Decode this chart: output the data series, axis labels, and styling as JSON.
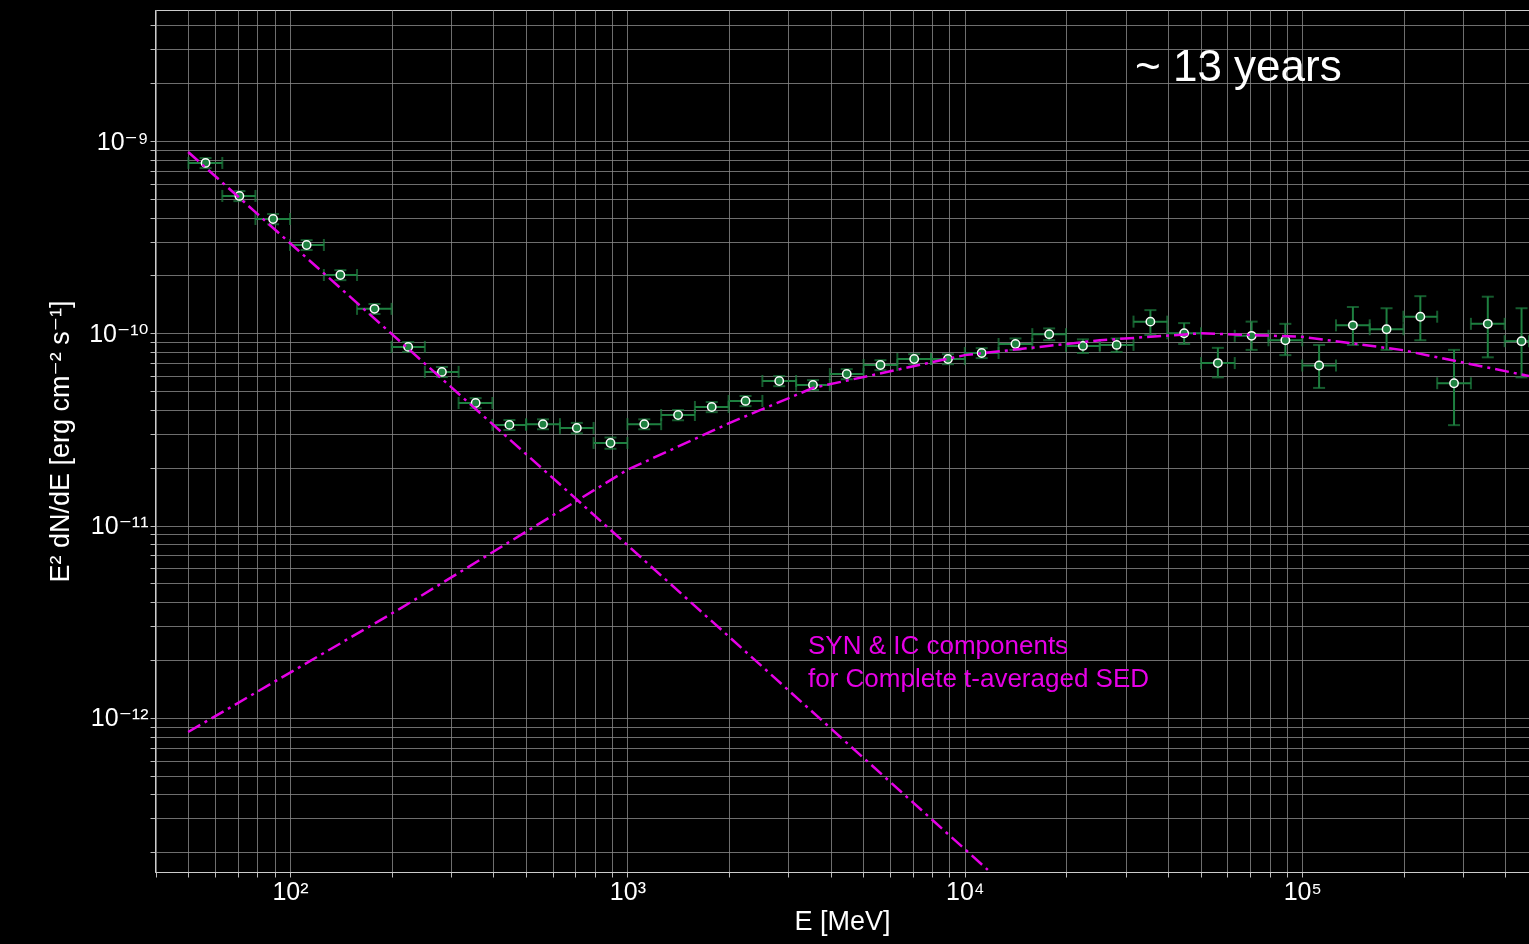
{
  "chart_data": {
    "type": "scatter",
    "xlabel": "E [MeV]",
    "ylabel": "E² dN/dE [erg cm⁻² s⁻¹]",
    "annotations": [
      "~ 13 years",
      "SYN & IC components",
      "for Complete t-averaged SED"
    ],
    "log": "xy",
    "grid": true,
    "xlim": [
      39.8,
      470000
    ],
    "ylim": [
      1.58e-13,
      4.8e-09
    ],
    "xticks": [
      {
        "value": 40,
        "label": null
      },
      {
        "value": 50,
        "label": null
      },
      {
        "value": 60,
        "label": null
      },
      {
        "value": 70,
        "label": null
      },
      {
        "value": 80,
        "label": null
      },
      {
        "value": 90,
        "label": null
      },
      {
        "value": 100,
        "label": "10²"
      },
      {
        "value": 200,
        "label": null
      },
      {
        "value": 300,
        "label": null
      },
      {
        "value": 400,
        "label": null
      },
      {
        "value": 500,
        "label": null
      },
      {
        "value": 600,
        "label": null
      },
      {
        "value": 700,
        "label": null
      },
      {
        "value": 800,
        "label": null
      },
      {
        "value": 900,
        "label": null
      },
      {
        "value": 1000,
        "label": "10³"
      },
      {
        "value": 2000,
        "label": null
      },
      {
        "value": 3000,
        "label": null
      },
      {
        "value": 4000,
        "label": null
      },
      {
        "value": 5000,
        "label": null
      },
      {
        "value": 6000,
        "label": null
      },
      {
        "value": 7000,
        "label": null
      },
      {
        "value": 8000,
        "label": null
      },
      {
        "value": 9000,
        "label": null
      },
      {
        "value": 10000,
        "label": "10⁴"
      },
      {
        "value": 20000,
        "label": null
      },
      {
        "value": 30000,
        "label": null
      },
      {
        "value": 40000,
        "label": null
      },
      {
        "value": 50000,
        "label": null
      },
      {
        "value": 60000,
        "label": null
      },
      {
        "value": 70000,
        "label": null
      },
      {
        "value": 80000,
        "label": null
      },
      {
        "value": 90000,
        "label": null
      },
      {
        "value": 100000,
        "label": "10⁵"
      },
      {
        "value": 200000,
        "label": null
      },
      {
        "value": 300000,
        "label": null
      },
      {
        "value": 400000,
        "label": null
      }
    ],
    "yticks": [
      {
        "value": 2e-13,
        "label": null
      },
      {
        "value": 3e-13,
        "label": null
      },
      {
        "value": 4e-13,
        "label": null
      },
      {
        "value": 5e-13,
        "label": null
      },
      {
        "value": 6e-13,
        "label": null
      },
      {
        "value": 7e-13,
        "label": null
      },
      {
        "value": 8e-13,
        "label": null
      },
      {
        "value": 9e-13,
        "label": null
      },
      {
        "value": 1e-12,
        "label": "10⁻¹²"
      },
      {
        "value": 2e-12,
        "label": null
      },
      {
        "value": 3e-12,
        "label": null
      },
      {
        "value": 4e-12,
        "label": null
      },
      {
        "value": 5e-12,
        "label": null
      },
      {
        "value": 6e-12,
        "label": null
      },
      {
        "value": 7e-12,
        "label": null
      },
      {
        "value": 8e-12,
        "label": null
      },
      {
        "value": 9e-12,
        "label": null
      },
      {
        "value": 1e-11,
        "label": "10⁻¹¹"
      },
      {
        "value": 2e-11,
        "label": null
      },
      {
        "value": 3e-11,
        "label": null
      },
      {
        "value": 4e-11,
        "label": null
      },
      {
        "value": 5e-11,
        "label": null
      },
      {
        "value": 6e-11,
        "label": null
      },
      {
        "value": 7e-11,
        "label": null
      },
      {
        "value": 8e-11,
        "label": null
      },
      {
        "value": 9e-11,
        "label": null
      },
      {
        "value": 1e-10,
        "label": "10⁻¹⁰"
      },
      {
        "value": 2e-10,
        "label": null
      },
      {
        "value": 3e-10,
        "label": null
      },
      {
        "value": 4e-10,
        "label": null
      },
      {
        "value": 5e-10,
        "label": null
      },
      {
        "value": 6e-10,
        "label": null
      },
      {
        "value": 7e-10,
        "label": null
      },
      {
        "value": 8e-10,
        "label": null
      },
      {
        "value": 9e-10,
        "label": null
      },
      {
        "value": 1e-09,
        "label": "10⁻⁹"
      },
      {
        "value": 2e-09,
        "label": null
      },
      {
        "value": 3e-09,
        "label": null
      },
      {
        "value": 4e-09,
        "label": null
      }
    ],
    "series": [
      {
        "color": "#1e8040",
        "marker": "circle",
        "x": [
          56.2,
          70.8,
          89.1,
          112,
          141,
          178,
          224,
          282,
          355,
          447,
          562,
          708,
          891,
          1122,
          1413,
          1778,
          2239,
          2818,
          3548,
          4467,
          5623,
          7079,
          8913,
          11220,
          14130,
          17780,
          22390,
          28180,
          35480,
          44670,
          56230,
          70790,
          89130,
          112200,
          141300,
          177800,
          223900,
          281800,
          354800,
          446700
        ],
        "values": [
          7.69e-10,
          5.18e-10,
          3.93e-10,
          2.88e-10,
          2.01e-10,
          1.34e-10,
          8.5e-11,
          6.3e-11,
          4.34e-11,
          3.34e-11,
          3.37e-11,
          3.22e-11,
          2.69e-11,
          3.37e-11,
          3.76e-11,
          4.14e-11,
          4.45e-11,
          5.65e-11,
          5.39e-11,
          6.14e-11,
          6.84e-11,
          7.35e-11,
          7.35e-11,
          7.9e-11,
          8.8e-11,
          9.9e-11,
          8.6e-11,
          8.7e-11,
          1.15e-10,
          1e-10,
          7e-11,
          9.7e-11,
          9.2e-11,
          6.8e-11,
          1.1e-10,
          1.05e-10,
          1.22e-10,
          5.5e-11,
          1.12e-10,
          9.1e-11
        ],
        "errors": [
          4.6e-11,
          3.1e-11,
          2.4e-11,
          1.7e-11,
          1.2e-11,
          8e-12,
          5e-12,
          3.8e-12,
          2.6e-12,
          2e-12,
          2e-12,
          2e-12,
          1.8e-12,
          2e-12,
          2.3e-12,
          2.5e-12,
          2.7e-12,
          3.4e-12,
          3.2e-12,
          3.7e-12,
          4.1e-12,
          4.4e-12,
          4.4e-12,
          4.7e-12,
          6e-12,
          7e-12,
          7e-12,
          7e-12,
          [
            9.8e-11,
            1.32e-10
          ],
          [
            8.8e-11,
            1.13e-10
          ],
          [
            5.9e-11,
            8.4e-11
          ],
          [
            8.2e-11,
            1.15e-10
          ],
          [
            7.7e-11,
            1.12e-10
          ],
          [
            5.2e-11,
            8.7e-11
          ],
          [
            8.7e-11,
            1.37e-10
          ],
          [
            8.2e-11,
            1.35e-10
          ],
          [
            9.2e-11,
            1.56e-10
          ],
          [
            3.33e-11,
            8.2e-11
          ],
          [
            7.5e-11,
            1.55e-10
          ],
          [
            5.9e-11,
            1.35e-10
          ]
        ],
        "xerrors": [
          [
            50,
            63
          ],
          [
            63,
            79
          ],
          [
            79,
            100
          ],
          [
            100,
            126
          ],
          [
            126,
            158
          ],
          [
            158,
            200
          ],
          [
            200,
            251
          ],
          [
            251,
            316
          ],
          [
            316,
            398
          ],
          [
            398,
            501
          ],
          [
            501,
            631
          ],
          [
            631,
            794
          ],
          [
            794,
            1000
          ],
          [
            1000,
            1259
          ],
          [
            1259,
            1585
          ],
          [
            1585,
            1995
          ],
          [
            1995,
            2512
          ],
          [
            2512,
            3162
          ],
          [
            3162,
            3981
          ],
          [
            3981,
            5012
          ],
          [
            5012,
            6310
          ],
          [
            6310,
            7943
          ],
          [
            7943,
            10000
          ],
          [
            10000,
            12590
          ],
          [
            12590,
            15850
          ],
          [
            15850,
            19950
          ],
          [
            19950,
            25120
          ],
          [
            25120,
            31620
          ],
          [
            31620,
            39810
          ],
          [
            39810,
            50120
          ],
          [
            50120,
            63100
          ],
          [
            63100,
            79430
          ],
          [
            79430,
            100000
          ],
          [
            100000,
            125900
          ],
          [
            125900,
            158500
          ],
          [
            158500,
            199500
          ],
          [
            199500,
            251200
          ],
          [
            251200,
            316200
          ],
          [
            316200,
            398100
          ],
          [
            398100,
            470000
          ]
        ]
      },
      {
        "type": "line",
        "color": "#e600e6",
        "line_style": "dashed",
        "x": [
          49.9,
          676,
          11700
        ],
        "values": [
          8.77e-10,
          1.47e-11,
          1.62e-13
        ]
      },
      {
        "type": "line",
        "color": "#e600e6",
        "line_style": "dashed",
        "x": [
          49.9,
          212,
          1000,
          1995,
          3548,
          10000,
          25120,
          50120,
          99300,
          196300,
          470000
        ],
        "values": [
          8.45e-13,
          3.7e-12,
          1.95e-11,
          3.4e-11,
          5.2e-11,
          7.7e-11,
          9.2e-11,
          1e-10,
          9.6e-11,
          8.2e-11,
          6e-11
        ]
      }
    ]
  }
}
